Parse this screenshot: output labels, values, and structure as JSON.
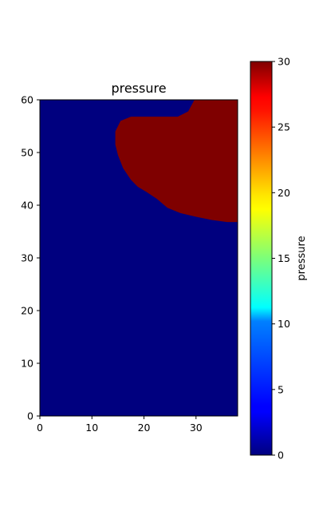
{
  "chart_data": [
    {
      "type": "heatmap",
      "title": "pressure",
      "xlabel": "",
      "ylabel": "",
      "xlim": [
        0,
        38
      ],
      "ylim": [
        0,
        60
      ],
      "x_ticks": [
        0,
        10,
        20,
        30
      ],
      "y_ticks": [
        0,
        10,
        20,
        30,
        40,
        50,
        60
      ],
      "colormap": "jet",
      "background_value": 0,
      "background_color": "#00007f",
      "region": {
        "value": 30,
        "color": "#7f0000",
        "description_units": "data",
        "boundary": [
          [
            29.7,
            60
          ],
          [
            38,
            60
          ],
          [
            38,
            36.8
          ],
          [
            36,
            36.8
          ],
          [
            33,
            37.2
          ],
          [
            30,
            37.8
          ],
          [
            27,
            38.5
          ],
          [
            24.5,
            39.5
          ],
          [
            22.5,
            41.2
          ],
          [
            20.5,
            42.5
          ],
          [
            18.8,
            43.5
          ],
          [
            17.5,
            44.8
          ],
          [
            16,
            47
          ],
          [
            15,
            49.5
          ],
          [
            14.5,
            51.5
          ],
          [
            14.5,
            54
          ],
          [
            15.5,
            56
          ],
          [
            17.5,
            56.8
          ],
          [
            22,
            56.8
          ],
          [
            26.5,
            56.8
          ],
          [
            28.5,
            57.8
          ]
        ]
      },
      "colorbar": {
        "label": "pressure",
        "range": [
          0,
          30
        ],
        "ticks": [
          0,
          5,
          10,
          15,
          20,
          25,
          30
        ]
      }
    }
  ]
}
